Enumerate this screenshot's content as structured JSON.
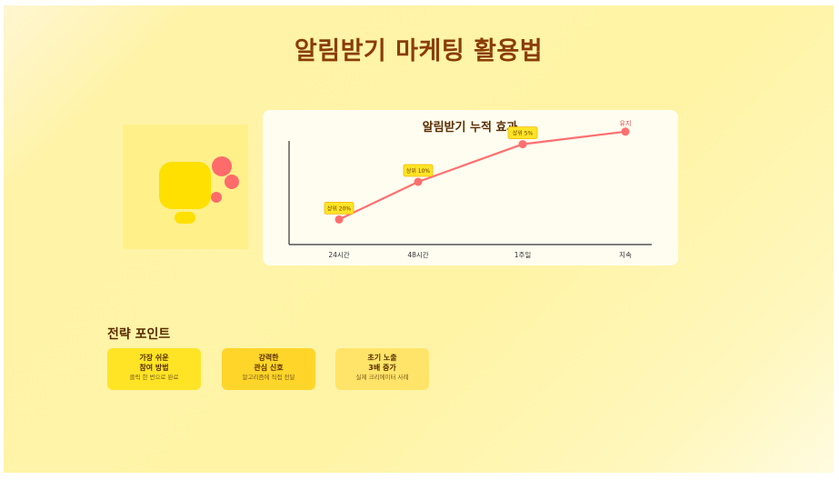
{
  "page": {
    "title": "알림받기 마케팅 활용법"
  },
  "chart_data": {
    "type": "line",
    "title": "알림받기 누적 효과",
    "categories": [
      "24시간",
      "48시간",
      "1주일",
      "지속"
    ],
    "x": [
      1,
      2,
      3,
      4
    ],
    "values": [
      20,
      50,
      80,
      90
    ],
    "data_labels": [
      "상위 20%",
      "상위 10%",
      "상위 5%",
      "유지"
    ],
    "xlabel": "",
    "ylabel": "",
    "ylim": [
      0,
      100
    ],
    "grid": false,
    "colors": {
      "line": "#ff6f6f",
      "point": "#ff6f6f",
      "label_bg": "#ffe426",
      "label_border": "#f5b800",
      "label_text": "#6a3a00",
      "last_label_text": "#e05050",
      "axis": "#333333"
    }
  },
  "strategy": {
    "title": "전략 포인트",
    "cards": [
      {
        "line1": "가장 쉬운",
        "line2": "참여 방법",
        "sub": "클릭 한 번으로 완료"
      },
      {
        "line1": "강력한",
        "line2": "관심 신호",
        "sub": "알고리즘에 직접 전달"
      },
      {
        "line1": "초기 노출",
        "line2": "3배 증가",
        "sub": "실제 크리에이터 사례"
      }
    ]
  },
  "illustration": {
    "icon": "bell-notification-icon",
    "colors": {
      "bell": "#ffe000",
      "bubble": "#ff6b6b",
      "panel": "#fff08a"
    }
  }
}
